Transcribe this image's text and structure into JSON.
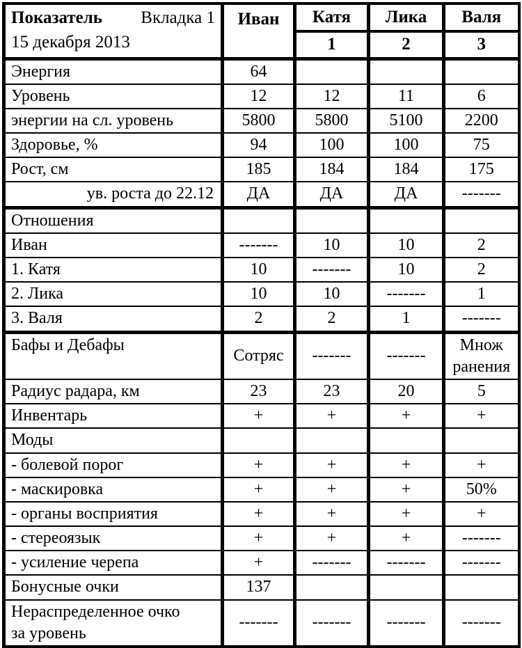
{
  "colors": {
    "text": "#000000",
    "background": "#ffffff",
    "border": "#000000"
  },
  "table": {
    "header": {
      "param_title": "Показатель",
      "tab_label": "Вкладка 1",
      "date": "15 декабря 2013",
      "columns": [
        {
          "name": "Иван",
          "sub": ""
        },
        {
          "name": "Катя",
          "sub": "1"
        },
        {
          "name": "Лика",
          "sub": "2"
        },
        {
          "name": "Валя",
          "sub": "3"
        }
      ]
    },
    "rows": [
      {
        "label": "Энергия",
        "values": [
          "64",
          "",
          "",
          ""
        ]
      },
      {
        "label": "Уровень",
        "values": [
          "12",
          "12",
          "11",
          "6"
        ]
      },
      {
        "label": "энергии на сл. уровень",
        "values": [
          "5800",
          "5800",
          "5100",
          "2200"
        ]
      },
      {
        "label": "Здоровье, %",
        "values": [
          "94",
          "100",
          "100",
          "75"
        ]
      },
      {
        "label": "Рост, см",
        "values": [
          "185",
          "184",
          "184",
          "175"
        ]
      },
      {
        "label": "ув. роста до 22.12",
        "align": "right",
        "values": [
          "ДА",
          "ДА",
          "ДА",
          "-------"
        ]
      },
      {
        "label": "Отношения",
        "thick_top": true,
        "values": [
          "",
          "",
          "",
          ""
        ]
      },
      {
        "label": "Иван",
        "values": [
          "-------",
          "10",
          "10",
          "2"
        ]
      },
      {
        "label": "1. Катя",
        "values": [
          "10",
          "-------",
          "10",
          "2"
        ]
      },
      {
        "label": "2. Лика",
        "values": [
          "10",
          "10",
          "-------",
          "1"
        ]
      },
      {
        "label": "3. Валя",
        "values": [
          "2",
          "2",
          "1",
          "-------"
        ]
      },
      {
        "label": "Бафы и Дебафы",
        "thick_top": true,
        "tall": true,
        "label_top": true,
        "values": [
          "Сотряс",
          "-------",
          "-------",
          "Множ\nранения"
        ]
      },
      {
        "label": "Радиус радара, км",
        "values": [
          "23",
          "23",
          "20",
          "5"
        ]
      },
      {
        "label": "Инвентарь",
        "values": [
          "+",
          "+",
          "+",
          "+"
        ]
      },
      {
        "label": "Моды",
        "values": [
          "",
          "",
          "",
          ""
        ]
      },
      {
        "label": "- болевой порог",
        "values": [
          "+",
          "+",
          "+",
          "+"
        ]
      },
      {
        "label": "- маскировка",
        "values": [
          "+",
          "+",
          "+",
          "50%"
        ]
      },
      {
        "label": "- органы восприятия",
        "values": [
          "+",
          "+",
          "+",
          "+"
        ]
      },
      {
        "label": "- стереоязык",
        "values": [
          "+",
          "+",
          "+",
          "-------"
        ]
      },
      {
        "label": "- усиление черепа",
        "values": [
          "+",
          "-------",
          "-------",
          "-------"
        ]
      },
      {
        "label": "Бонусные очки",
        "values": [
          "137",
          "",
          "",
          ""
        ]
      },
      {
        "label": "Нераспределенное очко\nза уровень",
        "tall": true,
        "values": [
          "-------",
          "-------",
          "-------",
          "-------"
        ]
      }
    ]
  }
}
